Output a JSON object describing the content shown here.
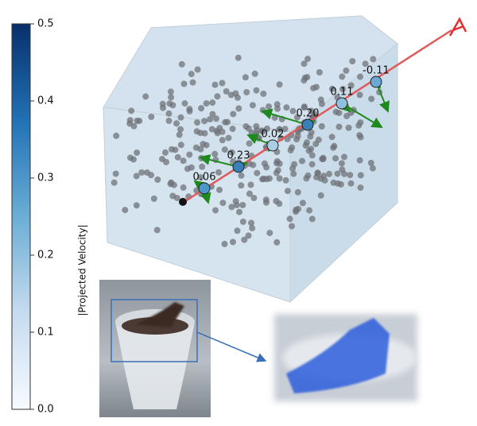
{
  "colorbar": {
    "label": "|Projected Velocity|",
    "range": [
      0,
      0.5
    ],
    "ticks": [
      {
        "value": 0,
        "label": "0.0"
      },
      {
        "value": 0.1,
        "label": "0.1"
      },
      {
        "value": 0.2,
        "label": "0.2"
      },
      {
        "value": 0.3,
        "label": "0.3"
      },
      {
        "value": 0.4,
        "label": "0.4"
      },
      {
        "value": 0.5,
        "label": "0.5"
      }
    ]
  },
  "point_labels": [
    "0.06",
    "0.23",
    "0.02",
    "0.20",
    "0.11",
    "-0.11"
  ]
}
